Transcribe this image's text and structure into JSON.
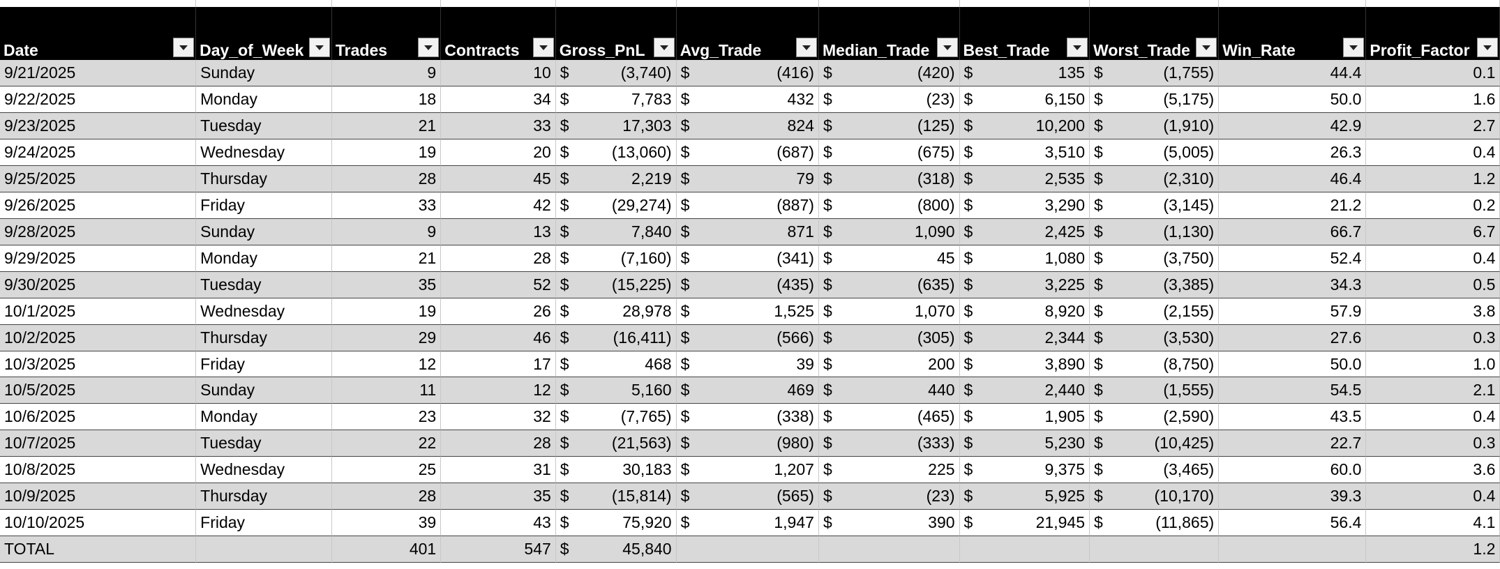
{
  "table": {
    "columns": [
      "Date",
      "Day_of_Week",
      "Trades",
      "Contracts",
      "Gross_PnL",
      "Avg_Trade",
      "Median_Trade",
      "Best_Trade",
      "Worst_Trade",
      "Win_Rate",
      "Profit_Factor"
    ],
    "currency_symbol": "$",
    "rows": [
      [
        "9/21/2025",
        "Sunday",
        "9",
        "10",
        "(3,740)",
        "(416)",
        "(420)",
        "135",
        "(1,755)",
        "44.4",
        "0.1"
      ],
      [
        "9/22/2025",
        "Monday",
        "18",
        "34",
        "7,783",
        "432",
        "(23)",
        "6,150",
        "(5,175)",
        "50.0",
        "1.6"
      ],
      [
        "9/23/2025",
        "Tuesday",
        "21",
        "33",
        "17,303",
        "824",
        "(125)",
        "10,200",
        "(1,910)",
        "42.9",
        "2.7"
      ],
      [
        "9/24/2025",
        "Wednesday",
        "19",
        "20",
        "(13,060)",
        "(687)",
        "(675)",
        "3,510",
        "(5,005)",
        "26.3",
        "0.4"
      ],
      [
        "9/25/2025",
        "Thursday",
        "28",
        "45",
        "2,219",
        "79",
        "(318)",
        "2,535",
        "(2,310)",
        "46.4",
        "1.2"
      ],
      [
        "9/26/2025",
        "Friday",
        "33",
        "42",
        "(29,274)",
        "(887)",
        "(800)",
        "3,290",
        "(3,145)",
        "21.2",
        "0.2"
      ],
      [
        "9/28/2025",
        "Sunday",
        "9",
        "13",
        "7,840",
        "871",
        "1,090",
        "2,425",
        "(1,130)",
        "66.7",
        "6.7"
      ],
      [
        "9/29/2025",
        "Monday",
        "21",
        "28",
        "(7,160)",
        "(341)",
        "45",
        "1,080",
        "(3,750)",
        "52.4",
        "0.4"
      ],
      [
        "9/30/2025",
        "Tuesday",
        "35",
        "52",
        "(15,225)",
        "(435)",
        "(635)",
        "3,225",
        "(3,385)",
        "34.3",
        "0.5"
      ],
      [
        "10/1/2025",
        "Wednesday",
        "19",
        "26",
        "28,978",
        "1,525",
        "1,070",
        "8,920",
        "(2,155)",
        "57.9",
        "3.8"
      ],
      [
        "10/2/2025",
        "Thursday",
        "29",
        "46",
        "(16,411)",
        "(566)",
        "(305)",
        "2,344",
        "(3,530)",
        "27.6",
        "0.3"
      ],
      [
        "10/3/2025",
        "Friday",
        "12",
        "17",
        "468",
        "39",
        "200",
        "3,890",
        "(8,750)",
        "50.0",
        "1.0"
      ],
      [
        "10/5/2025",
        "Sunday",
        "11",
        "12",
        "5,160",
        "469",
        "440",
        "2,440",
        "(1,555)",
        "54.5",
        "2.1"
      ],
      [
        "10/6/2025",
        "Monday",
        "23",
        "32",
        "(7,765)",
        "(338)",
        "(465)",
        "1,905",
        "(2,590)",
        "43.5",
        "0.4"
      ],
      [
        "10/7/2025",
        "Tuesday",
        "22",
        "28",
        "(21,563)",
        "(980)",
        "(333)",
        "5,230",
        "(10,425)",
        "22.7",
        "0.3"
      ],
      [
        "10/8/2025",
        "Wednesday",
        "25",
        "31",
        "30,183",
        "1,207",
        "225",
        "9,375",
        "(3,465)",
        "60.0",
        "3.6"
      ],
      [
        "10/9/2025",
        "Thursday",
        "28",
        "35",
        "(15,814)",
        "(565)",
        "(23)",
        "5,925",
        "(10,170)",
        "39.3",
        "0.4"
      ],
      [
        "10/10/2025",
        "Friday",
        "39",
        "43",
        "75,920",
        "1,947",
        "390",
        "21,945",
        "(11,865)",
        "56.4",
        "4.1"
      ]
    ],
    "total": {
      "label": "TOTAL",
      "trades": "401",
      "contracts": "547",
      "gross_pnl": "45,840",
      "profit_factor": "1.2"
    }
  }
}
